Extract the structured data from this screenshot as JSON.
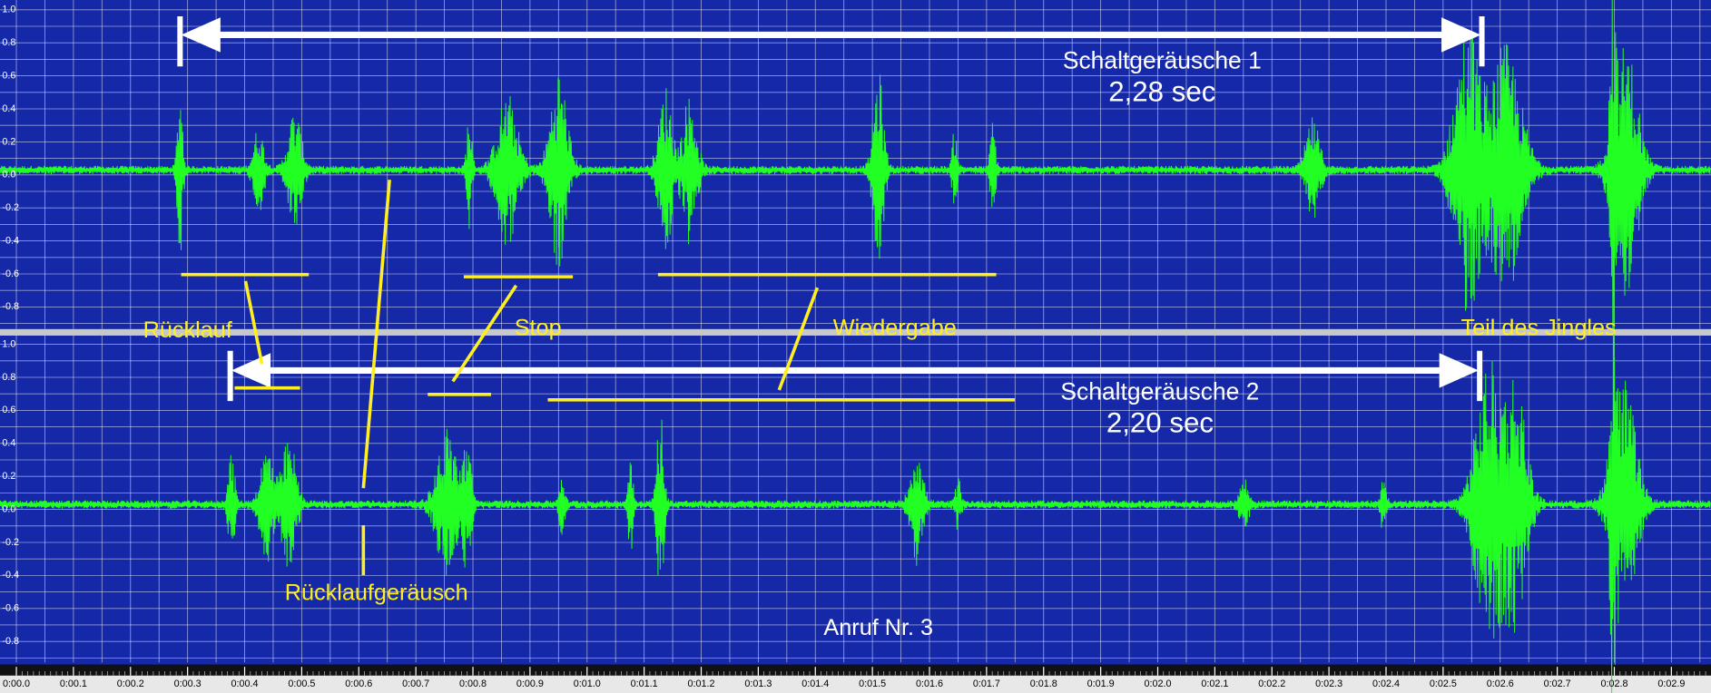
{
  "tracks": [
    {
      "y_labels": [
        "1.0",
        "0.8",
        "0.6",
        "0.4",
        "0.2",
        "0.0",
        "-0.2",
        "-0.4",
        "-0.6",
        "-0.8"
      ]
    },
    {
      "y_labels": [
        "1.0",
        "0.8",
        "0.6",
        "0.4",
        "0.2",
        "0.0",
        "-0.2",
        "-0.4",
        "-0.6",
        "-0.8"
      ]
    }
  ],
  "time_labels": [
    "0:00.0",
    "0:00.1",
    "0:00.2",
    "0:00.3",
    "0:00.4",
    "0:00.5",
    "0:00.6",
    "0:00.7",
    "0:00.8",
    "0:00.9",
    "0:01.0",
    "0:01.1",
    "0:01.2",
    "0:01.3",
    "0:01.4",
    "0:01.5",
    "0:01.6",
    "0:01.7",
    "0:01.8",
    "0:01.9",
    "0:02.0",
    "0:02.1",
    "0:02.2",
    "0:02.3",
    "0:02.4",
    "0:02.5",
    "0:02.6",
    "0:02.7",
    "0:02.8",
    "0:02.9"
  ],
  "annotations": {
    "range1_title": "Schaltgeräusche 1",
    "range1_duration": "2,28 sec",
    "range2_title": "Schaltgeräusche 2",
    "range2_duration": "2,20 sec",
    "ruecklauf": "Rücklauf",
    "stop": "Stop",
    "wiedergabe": "Wiedergabe",
    "jingle": "Teil des Jingles",
    "ruecklaufgeraeusch": "Rücklaufgeräusch",
    "call": "Anruf Nr. 3"
  }
}
